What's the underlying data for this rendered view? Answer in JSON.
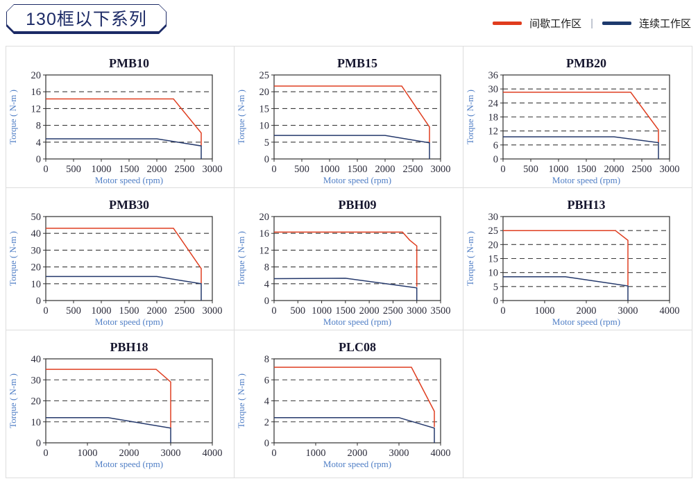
{
  "header": {
    "title": "130框以下系列",
    "legend": [
      {
        "key": "intermittent",
        "label": "间歇工作区",
        "color": "#e03c1e"
      },
      {
        "key": "continuous",
        "label": "连续工作区",
        "color": "#1e3a6d"
      }
    ],
    "legend_separator": "|",
    "legend_position": "top-right"
  },
  "colors": {
    "intermittent_red": "#df3e20",
    "continuous_navy": "#24386b",
    "panel_border": "#dddddd",
    "axis_label_blue": "#4f7ec5",
    "badge_navy": "#1c2a66"
  },
  "chart_data": [
    {
      "type": "line",
      "title": "PMB10",
      "xlabel": "Motor speed (rpm)",
      "ylabel": "Torque ( N-m )",
      "xlim": [
        0,
        3000
      ],
      "ylim": [
        0,
        20
      ],
      "xticks": [
        0,
        500,
        1000,
        1500,
        2000,
        2500,
        3000
      ],
      "yticks": [
        0,
        4,
        8,
        12,
        16,
        20
      ],
      "grid": "horizontal-dashed",
      "series": [
        {
          "name": "间歇工作区",
          "key": "intermittent",
          "color": "#df3e20",
          "points": [
            [
              0,
              14.3
            ],
            [
              2300,
              14.3
            ],
            [
              2800,
              6.2
            ],
            [
              2800,
              3.2
            ]
          ]
        },
        {
          "name": "连续工作区",
          "key": "continuous",
          "color": "#24386b",
          "points": [
            [
              0,
              4.8
            ],
            [
              2000,
              4.8
            ],
            [
              2800,
              3.1
            ],
            [
              2800,
              0
            ]
          ]
        }
      ]
    },
    {
      "type": "line",
      "title": "PMB15",
      "xlabel": "Motor speed (rpm)",
      "ylabel": "Torque ( N-m )",
      "xlim": [
        0,
        3000
      ],
      "ylim": [
        0,
        25
      ],
      "xticks": [
        0,
        500,
        1000,
        1500,
        2000,
        2500,
        3000
      ],
      "yticks": [
        0,
        5,
        10,
        15,
        20,
        25
      ],
      "grid": "horizontal-dashed",
      "series": [
        {
          "name": "间歇工作区",
          "key": "intermittent",
          "color": "#df3e20",
          "points": [
            [
              0,
              21.7
            ],
            [
              2300,
              21.7
            ],
            [
              2800,
              9.5
            ],
            [
              2800,
              4.9
            ]
          ]
        },
        {
          "name": "连续工作区",
          "key": "continuous",
          "color": "#24386b",
          "points": [
            [
              0,
              7
            ],
            [
              2000,
              7
            ],
            [
              2800,
              4.8
            ],
            [
              2800,
              0
            ]
          ]
        }
      ]
    },
    {
      "type": "line",
      "title": "PMB20",
      "xlabel": "Motor speed (rpm)",
      "ylabel": "Torque ( N-m )",
      "xlim": [
        0,
        3000
      ],
      "ylim": [
        0,
        36
      ],
      "xticks": [
        0,
        500,
        1000,
        1500,
        2000,
        2500,
        3000
      ],
      "yticks": [
        0,
        6,
        12,
        18,
        24,
        30,
        36
      ],
      "grid": "horizontal-dashed",
      "series": [
        {
          "name": "间歇工作区",
          "key": "intermittent",
          "color": "#df3e20",
          "points": [
            [
              0,
              28.6
            ],
            [
              2300,
              28.6
            ],
            [
              2800,
              12.5
            ],
            [
              2800,
              7.1
            ]
          ]
        },
        {
          "name": "连续工作区",
          "key": "continuous",
          "color": "#24386b",
          "points": [
            [
              0,
              9.5
            ],
            [
              2000,
              9.5
            ],
            [
              2800,
              7
            ],
            [
              2800,
              0
            ]
          ]
        }
      ]
    },
    {
      "type": "line",
      "title": "PMB30",
      "xlabel": "Motor speed (rpm)",
      "ylabel": "Torque ( N-m )",
      "xlim": [
        0,
        3000
      ],
      "ylim": [
        0,
        50
      ],
      "xticks": [
        0,
        500,
        1000,
        1500,
        2000,
        2500,
        3000
      ],
      "yticks": [
        0,
        10,
        20,
        30,
        40,
        50
      ],
      "grid": "horizontal-dashed",
      "series": [
        {
          "name": "间歇工作区",
          "key": "intermittent",
          "color": "#df3e20",
          "points": [
            [
              0,
              43
            ],
            [
              2300,
              43
            ],
            [
              2800,
              19
            ],
            [
              2800,
              10.2
            ]
          ]
        },
        {
          "name": "连续工作区",
          "key": "continuous",
          "color": "#24386b",
          "points": [
            [
              0,
              14.3
            ],
            [
              2000,
              14.3
            ],
            [
              2800,
              10
            ],
            [
              2800,
              0
            ]
          ]
        }
      ]
    },
    {
      "type": "line",
      "title": "PBH09",
      "xlabel": "Motor speed (rpm)",
      "ylabel": "Torque ( N-m )",
      "xlim": [
        0,
        3500
      ],
      "ylim": [
        0,
        20
      ],
      "xticks": [
        0,
        500,
        1000,
        1500,
        2000,
        2500,
        3000,
        3500
      ],
      "yticks": [
        0,
        4,
        8,
        12,
        16,
        20
      ],
      "grid": "horizontal-dashed",
      "series": [
        {
          "name": "间歇工作区",
          "key": "intermittent",
          "color": "#df3e20",
          "points": [
            [
              0,
              16.3
            ],
            [
              2700,
              16.3
            ],
            [
              2850,
              14.4
            ],
            [
              3000,
              13
            ],
            [
              3000,
              3.3
            ]
          ]
        },
        {
          "name": "连续工作区",
          "key": "continuous",
          "color": "#24386b",
          "points": [
            [
              0,
              5.2
            ],
            [
              1500,
              5.3
            ],
            [
              3000,
              3
            ],
            [
              3000,
              0
            ]
          ]
        }
      ]
    },
    {
      "type": "line",
      "title": "PBH13",
      "xlabel": "Motor speed (rpm)",
      "ylabel": "Torque ( N-m )",
      "xlim": [
        0,
        4000
      ],
      "ylim": [
        0,
        30
      ],
      "xticks": [
        0,
        1000,
        2000,
        3000,
        4000
      ],
      "yticks": [
        0,
        5,
        10,
        15,
        20,
        25,
        30
      ],
      "grid": "horizontal-dashed",
      "series": [
        {
          "name": "间歇工作区",
          "key": "intermittent",
          "color": "#df3e20",
          "points": [
            [
              0,
              25
            ],
            [
              2700,
              25
            ],
            [
              3000,
              21.5
            ],
            [
              3000,
              5.4
            ]
          ]
        },
        {
          "name": "连续工作区",
          "key": "continuous",
          "color": "#24386b",
          "points": [
            [
              0,
              8.5
            ],
            [
              1500,
              8.5
            ],
            [
              3000,
              5.2
            ],
            [
              3000,
              0
            ]
          ]
        }
      ]
    },
    {
      "type": "line",
      "title": "PBH18",
      "xlabel": "Motor speed (rpm)",
      "ylabel": "Torque ( N-m )",
      "xlim": [
        0,
        4000
      ],
      "ylim": [
        0,
        40
      ],
      "xticks": [
        0,
        1000,
        2000,
        3000,
        4000
      ],
      "yticks": [
        0,
        10,
        20,
        30,
        40
      ],
      "grid": "horizontal-dashed",
      "series": [
        {
          "name": "间歇工作区",
          "key": "intermittent",
          "color": "#df3e20",
          "points": [
            [
              0,
              35
            ],
            [
              2650,
              35
            ],
            [
              3000,
              29
            ],
            [
              3000,
              7.2
            ]
          ]
        },
        {
          "name": "连续工作区",
          "key": "continuous",
          "color": "#24386b",
          "points": [
            [
              0,
              12
            ],
            [
              1500,
              12
            ],
            [
              3000,
              7
            ],
            [
              3000,
              0
            ]
          ]
        }
      ]
    },
    {
      "type": "line",
      "title": "PLC08",
      "xlabel": "Motor speed (rpm)",
      "ylabel": "Torque ( N-m )",
      "xlim": [
        0,
        4000
      ],
      "ylim": [
        0,
        8
      ],
      "xticks": [
        0,
        1000,
        2000,
        3000,
        4000
      ],
      "yticks": [
        0,
        2,
        4,
        6,
        8
      ],
      "grid": "horizontal-dashed",
      "series": [
        {
          "name": "间歇工作区",
          "key": "intermittent",
          "color": "#df3e20",
          "points": [
            [
              0,
              7.2
            ],
            [
              3300,
              7.2
            ],
            [
              3850,
              3
            ],
            [
              3850,
              1.5
            ]
          ]
        },
        {
          "name": "连续工作区",
          "key": "continuous",
          "color": "#24386b",
          "points": [
            [
              0,
              2.4
            ],
            [
              3000,
              2.4
            ],
            [
              3850,
              1.4
            ],
            [
              3850,
              0
            ]
          ]
        }
      ]
    }
  ]
}
